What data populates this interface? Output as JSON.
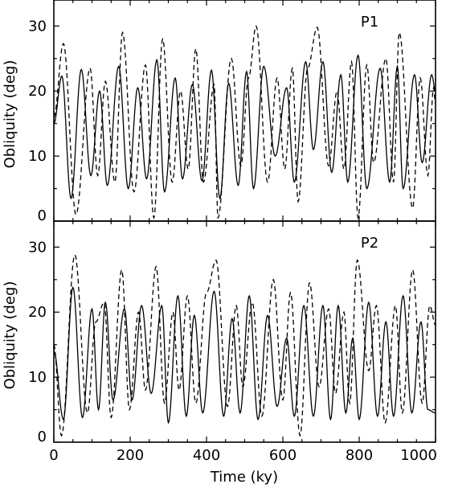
{
  "chart_data": [
    {
      "type": "line",
      "panel_label": "P1",
      "xlabel": "",
      "ylabel": "Obliquity (deg)",
      "xlim": [
        0,
        1000
      ],
      "ylim": [
        0,
        34
      ],
      "xticks": [
        0,
        200,
        400,
        600,
        800,
        1000
      ],
      "yticks": [
        0,
        10,
        20,
        30
      ],
      "ytick_labels": [
        "0",
        "10",
        "20",
        "30"
      ],
      "grid": false,
      "series": [
        {
          "style": "solid",
          "color": "#000000",
          "peaks": [
            [
              0,
              15
            ],
            [
              21,
              22.3
            ],
            [
              45,
              3.5
            ],
            [
              72,
              23.3
            ],
            [
              97,
              7
            ],
            [
              120,
              20
            ],
            [
              140,
              5.5
            ],
            [
              170,
              23.8
            ],
            [
              195,
              5
            ],
            [
              220,
              20.5
            ],
            [
              243,
              6.5
            ],
            [
              270,
              24.8
            ],
            [
              290,
              4.5
            ],
            [
              318,
              22
            ],
            [
              337,
              6.5
            ],
            [
              363,
              21
            ],
            [
              388,
              6.2
            ],
            [
              413,
              23.2
            ],
            [
              435,
              3.5
            ],
            [
              458,
              21.2
            ],
            [
              483,
              5.5
            ],
            [
              505,
              23
            ],
            [
              523,
              5
            ],
            [
              550,
              23.8
            ],
            [
              580,
              10
            ],
            [
              610,
              20.5
            ],
            [
              630,
              6
            ],
            [
              660,
              24.5
            ],
            [
              680,
              11
            ],
            [
              705,
              24.5
            ],
            [
              728,
              7.5
            ],
            [
              752,
              22.5
            ],
            [
              770,
              6
            ],
            [
              797,
              25.5
            ],
            [
              820,
              5
            ],
            [
              855,
              23.5
            ],
            [
              880,
              6
            ],
            [
              900,
              23.8
            ],
            [
              915,
              5
            ],
            [
              945,
              22.5
            ],
            [
              965,
              9
            ],
            [
              990,
              22.5
            ],
            [
              1000,
              20
            ]
          ]
        },
        {
          "style": "dashed",
          "color": "#000000",
          "peaks": [
            [
              0,
              16
            ],
            [
              25,
              27.3
            ],
            [
              58,
              1
            ],
            [
              95,
              23.5
            ],
            [
              115,
              7
            ],
            [
              135,
              21.5
            ],
            [
              160,
              6
            ],
            [
              180,
              29
            ],
            [
              210,
              4.5
            ],
            [
              240,
              24
            ],
            [
              262,
              0.5
            ],
            [
              285,
              28
            ],
            [
              310,
              6
            ],
            [
              332,
              20
            ],
            [
              352,
              8
            ],
            [
              372,
              26.5
            ],
            [
              392,
              6
            ],
            [
              420,
              21
            ],
            [
              430,
              0.5
            ],
            [
              465,
              25
            ],
            [
              490,
              8.5
            ],
            [
              510,
              22
            ],
            [
              530,
              30
            ],
            [
              560,
              6
            ],
            [
              585,
              22
            ],
            [
              605,
              8
            ],
            [
              625,
              23.5
            ],
            [
              640,
              3
            ],
            [
              665,
              23.5
            ],
            [
              690,
              29.8
            ],
            [
              720,
              8.5
            ],
            [
              742,
              20
            ],
            [
              760,
              8
            ],
            [
              780,
              24.5
            ],
            [
              797,
              0.5
            ],
            [
              820,
              24
            ],
            [
              838,
              9
            ],
            [
              870,
              25
            ],
            [
              890,
              6
            ],
            [
              905,
              29
            ],
            [
              940,
              2
            ],
            [
              960,
              22
            ],
            [
              980,
              7
            ],
            [
              995,
              20.5
            ],
            [
              1000,
              18
            ]
          ]
        }
      ]
    },
    {
      "type": "line",
      "panel_label": "P2",
      "xlabel": "Time (ky)",
      "ylabel": "Obliquity (deg)",
      "xlim": [
        0,
        1000
      ],
      "ylim": [
        0,
        34
      ],
      "xticks": [
        0,
        200,
        400,
        600,
        800,
        1000
      ],
      "xtick_labels": [
        "0",
        "200",
        "400",
        "600",
        "800",
        "1000"
      ],
      "yticks": [
        0,
        10,
        20,
        30
      ],
      "ytick_labels": [
        "0",
        "10",
        "20",
        "30"
      ],
      "grid": false,
      "series": [
        {
          "style": "solid",
          "color": "#000000",
          "peaks": [
            [
              0,
              14
            ],
            [
              25,
              3.5
            ],
            [
              50,
              23.8
            ],
            [
              75,
              3.8
            ],
            [
              100,
              20.5
            ],
            [
              117,
              5
            ],
            [
              135,
              21.5
            ],
            [
              155,
              6.5
            ],
            [
              185,
              20.5
            ],
            [
              205,
              6.5
            ],
            [
              230,
              21
            ],
            [
              255,
              7.5
            ],
            [
              283,
              21
            ],
            [
              300,
              3
            ],
            [
              325,
              22.5
            ],
            [
              347,
              4
            ],
            [
              368,
              19.5
            ],
            [
              390,
              4.5
            ],
            [
              420,
              23.2
            ],
            [
              445,
              4
            ],
            [
              467,
              19
            ],
            [
              488,
              4.5
            ],
            [
              512,
              22.5
            ],
            [
              535,
              3.5
            ],
            [
              560,
              19.5
            ],
            [
              585,
              5.5
            ],
            [
              610,
              16
            ],
            [
              630,
              4
            ],
            [
              655,
              21
            ],
            [
              680,
              4
            ],
            [
              705,
              21
            ],
            [
              725,
              3.5
            ],
            [
              745,
              21
            ],
            [
              765,
              4.5
            ],
            [
              783,
              16
            ],
            [
              800,
              3.5
            ],
            [
              825,
              21.5
            ],
            [
              848,
              4
            ],
            [
              870,
              18.5
            ],
            [
              890,
              4
            ],
            [
              915,
              22.5
            ],
            [
              938,
              4.5
            ],
            [
              962,
              18.5
            ],
            [
              980,
              5
            ],
            [
              1000,
              4.5
            ]
          ]
        },
        {
          "style": "dashed",
          "color": "#000000",
          "peaks": [
            [
              0,
              15
            ],
            [
              20,
              1
            ],
            [
              55,
              28.8
            ],
            [
              88,
              4.5
            ],
            [
              110,
              18.5
            ],
            [
              132,
              21.5
            ],
            [
              150,
              3.8
            ],
            [
              178,
              26.5
            ],
            [
              198,
              5
            ],
            [
              222,
              20
            ],
            [
              240,
              8
            ],
            [
              268,
              27
            ],
            [
              290,
              6
            ],
            [
              312,
              20
            ],
            [
              328,
              8
            ],
            [
              350,
              22.5
            ],
            [
              372,
              6
            ],
            [
              400,
              23
            ],
            [
              425,
              28
            ],
            [
              455,
              5.5
            ],
            [
              478,
              21
            ],
            [
              495,
              8.5
            ],
            [
              520,
              21.5
            ],
            [
              545,
              4
            ],
            [
              575,
              25
            ],
            [
              600,
              6.5
            ],
            [
              620,
              23
            ],
            [
              645,
              1
            ],
            [
              670,
              24.5
            ],
            [
              695,
              8.5
            ],
            [
              720,
              20.5
            ],
            [
              738,
              7.5
            ],
            [
              760,
              20
            ],
            [
              775,
              6
            ],
            [
              795,
              28
            ],
            [
              825,
              11
            ],
            [
              845,
              21
            ],
            [
              868,
              3
            ],
            [
              895,
              21
            ],
            [
              913,
              4.5
            ],
            [
              940,
              26.5
            ],
            [
              965,
              6
            ],
            [
              985,
              21
            ],
            [
              1000,
              18
            ]
          ]
        }
      ]
    }
  ]
}
